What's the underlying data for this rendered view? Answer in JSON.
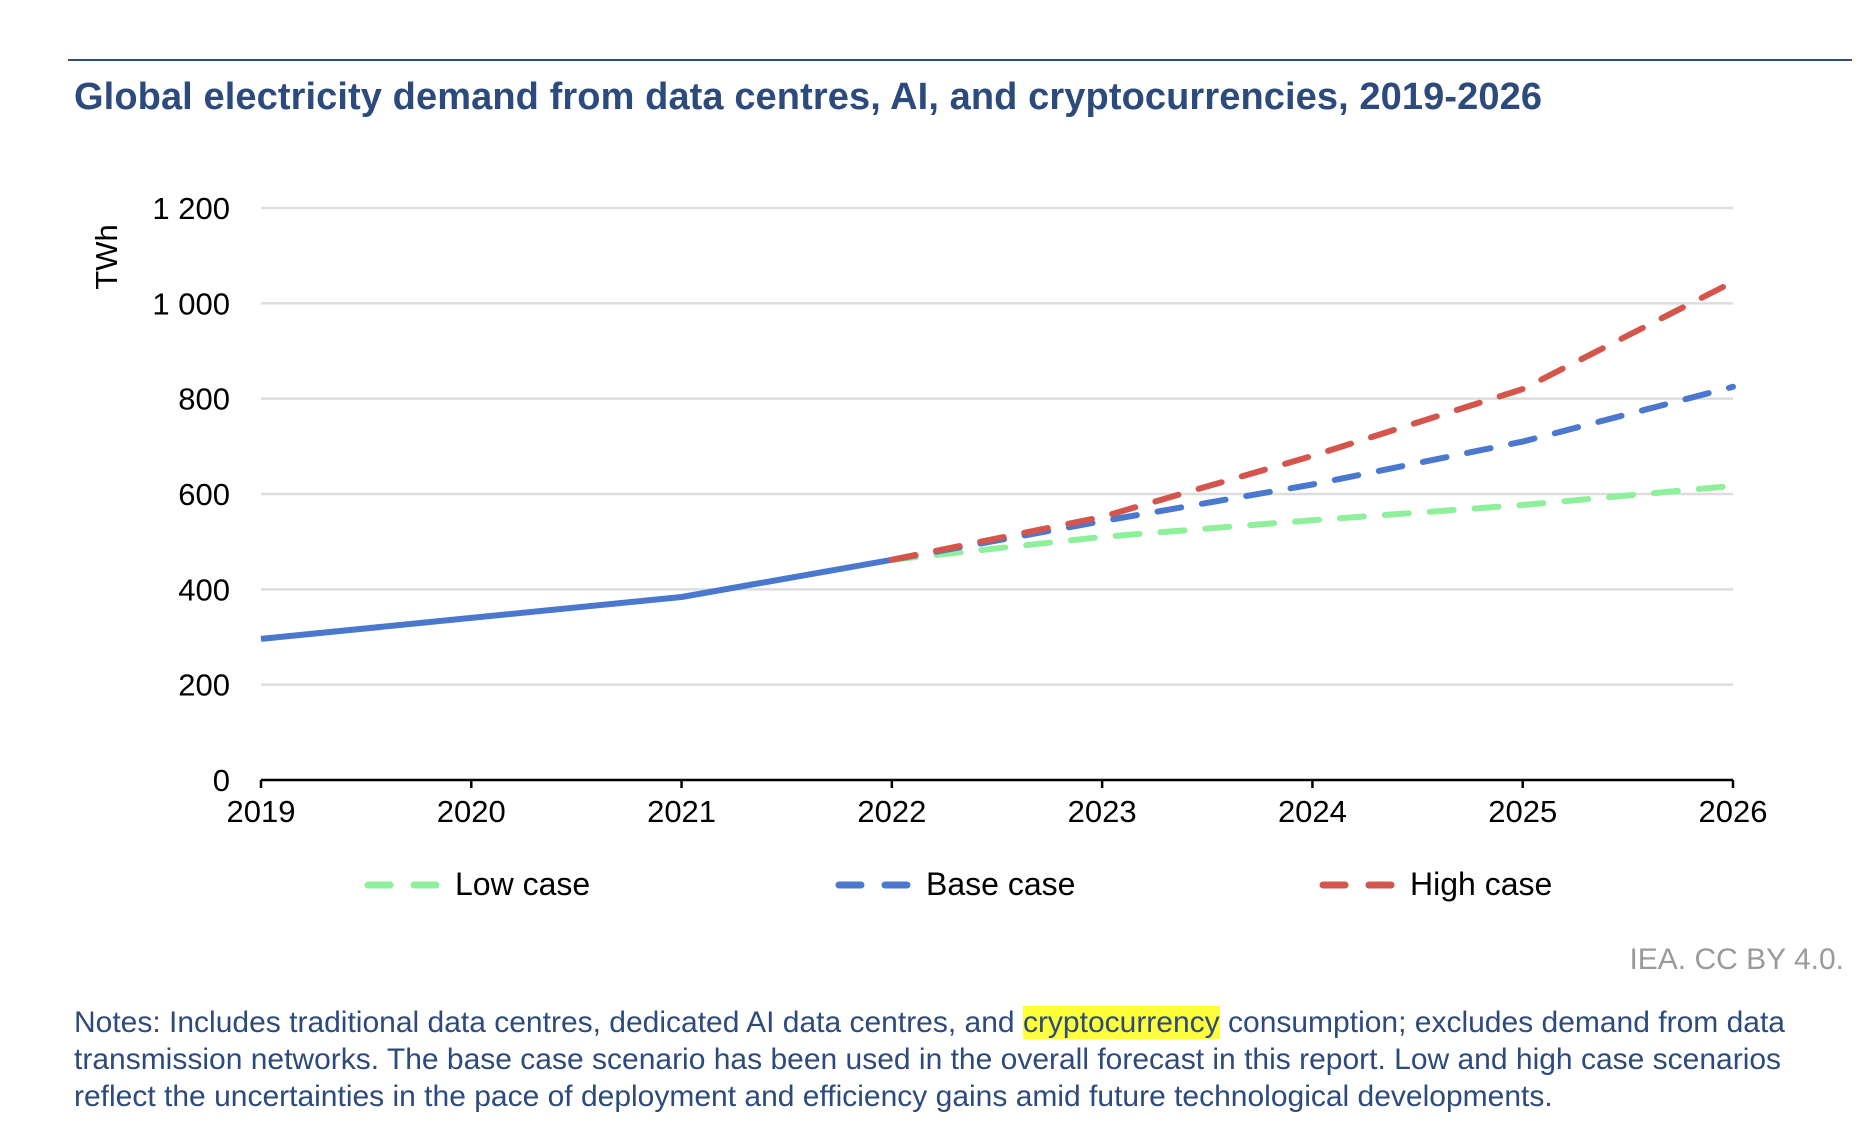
{
  "header": {
    "title": "Global electricity demand from data centres, AI, and cryptocurrencies, 2019-2026"
  },
  "chart_data": {
    "type": "line",
    "title": "Global electricity demand from data centres, AI, and cryptocurrencies, 2019-2026",
    "xlabel": "",
    "ylabel": "TWh",
    "x": [
      "2019",
      "2020",
      "2021",
      "2022",
      "2023",
      "2024",
      "2025",
      "2026"
    ],
    "ylim": [
      0,
      1200
    ],
    "yticks": [
      0,
      200,
      400,
      600,
      800,
      1000,
      1200
    ],
    "ytick_labels": [
      "0",
      "200",
      "400",
      "600",
      "800",
      "1 000",
      "1 200"
    ],
    "grid": true,
    "legend_position": "bottom",
    "series": [
      {
        "name": "Historical",
        "style": "solid",
        "color": "#4a78cf",
        "in_legend": false,
        "x": [
          "2019",
          "2020",
          "2021",
          "2022"
        ],
        "values": [
          296,
          340,
          384,
          462
        ]
      },
      {
        "name": "Low case",
        "style": "dashed",
        "color": "#8ef09a",
        "in_legend": true,
        "x": [
          "2022",
          "2023",
          "2024",
          "2025",
          "2026"
        ],
        "values": [
          462,
          510,
          545,
          577,
          617
        ]
      },
      {
        "name": "Base case",
        "style": "dashed",
        "color": "#4a78cf",
        "in_legend": true,
        "x": [
          "2022",
          "2023",
          "2024",
          "2025",
          "2026"
        ],
        "values": [
          462,
          543,
          620,
          710,
          825
        ]
      },
      {
        "name": "High case",
        "style": "dashed",
        "color": "#d4554b",
        "in_legend": true,
        "x": [
          "2022",
          "2023",
          "2024",
          "2025",
          "2026"
        ],
        "values": [
          462,
          552,
          680,
          820,
          1045
        ]
      }
    ]
  },
  "legend": [
    {
      "label": "Low case",
      "color": "#8ef09a"
    },
    {
      "label": "Base case",
      "color": "#4a78cf"
    },
    {
      "label": "High case",
      "color": "#d4554b"
    }
  ],
  "source": "IEA. CC BY 4.0.",
  "notes": {
    "prefix": "Notes: Includes traditional data centres, dedicated AI data centres, and ",
    "highlight": "cryptocurrency",
    "suffix": " consumption; excludes demand from data transmission networks. The base case scenario has been used in the overall forecast in this report. Low and high case scenarios reflect the uncertainties in the pace of deployment and efficiency gains amid future technological developments."
  },
  "colors": {
    "title": "#2c4a7c",
    "grid": "#dddddd",
    "highlight": "#ffff3a"
  }
}
